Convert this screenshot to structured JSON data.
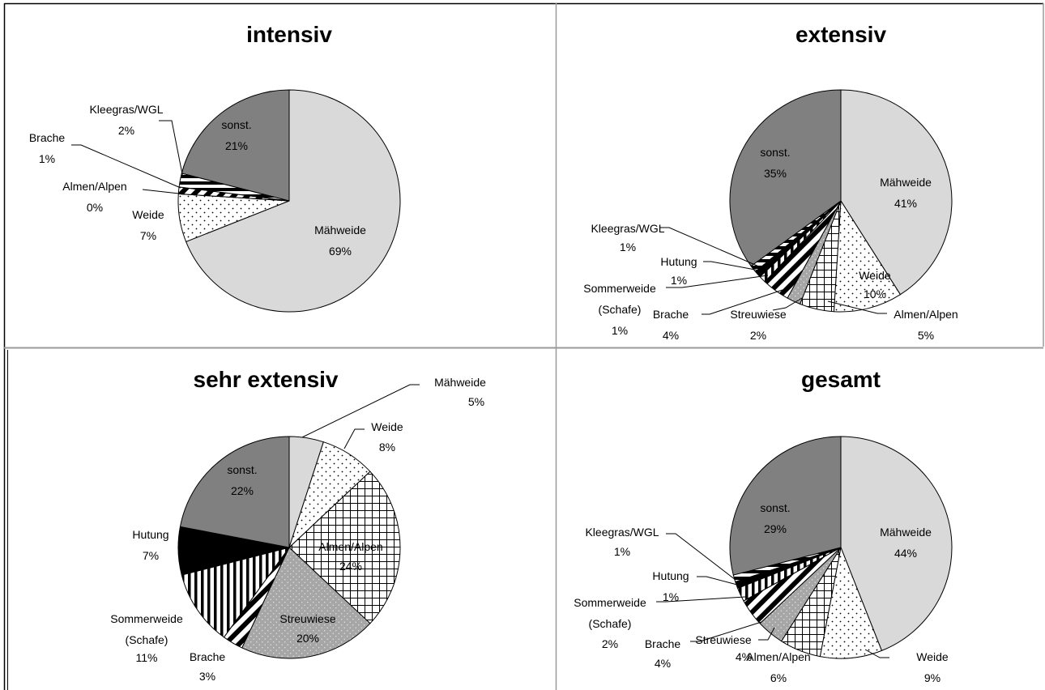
{
  "chart_data": [
    {
      "type": "pie",
      "title": "intensiv",
      "slices": [
        {
          "label": "Mähweide",
          "value_text": "69%",
          "value": 69,
          "pattern": "solid-light",
          "color": "#d9d9d9"
        },
        {
          "label": "Weide",
          "value_text": "7%",
          "value": 7,
          "pattern": "dots",
          "color": "#ffffff"
        },
        {
          "label": "Almen/Alpen",
          "value_text": "0%",
          "value": 0,
          "pattern": "grid",
          "color": "#ffffff"
        },
        {
          "label": "Brache",
          "value_text": "1%",
          "value": 1,
          "pattern": "diagonal",
          "color": "#ffffff"
        },
        {
          "label": "Kleegras/WGL",
          "value_text": "2%",
          "value": 2,
          "pattern": "horizontal",
          "color": "#ffffff"
        },
        {
          "label": "sonst.",
          "value_text": "21%",
          "value": 21,
          "pattern": "solid-dark",
          "color": "#808080"
        }
      ]
    },
    {
      "type": "pie",
      "title": "extensiv",
      "slices": [
        {
          "label": "Mähweide",
          "value_text": "41%",
          "value": 41,
          "pattern": "solid-light",
          "color": "#d9d9d9"
        },
        {
          "label": "Weide",
          "value_text": "10%",
          "value": 10,
          "pattern": "dots",
          "color": "#ffffff"
        },
        {
          "label": "Almen/Alpen",
          "value_text": "5%",
          "value": 5,
          "pattern": "grid",
          "color": "#ffffff"
        },
        {
          "label": "Streuwiese",
          "value_text": "2%",
          "value": 2,
          "pattern": "solid-mid",
          "color": "#a6a6a6"
        },
        {
          "label": "Brache",
          "value_text": "4%",
          "value": 4,
          "pattern": "diagonal",
          "color": "#ffffff"
        },
        {
          "label": "Sommerweide\n(Schafe)",
          "value_text": "1%",
          "value": 1,
          "pattern": "vertical",
          "color": "#ffffff"
        },
        {
          "label": "Hutung",
          "value_text": "1%",
          "value": 1,
          "pattern": "solid-black",
          "color": "#000000"
        },
        {
          "label": "Kleegras/WGL",
          "value_text": "1%",
          "value": 1,
          "pattern": "horizontal",
          "color": "#ffffff"
        },
        {
          "label": "sonst.",
          "value_text": "35%",
          "value": 35,
          "pattern": "solid-dark",
          "color": "#808080"
        }
      ]
    },
    {
      "type": "pie",
      "title": "sehr extensiv",
      "slices": [
        {
          "label": "Mähweide",
          "value_text": "5%",
          "value": 5,
          "pattern": "solid-light",
          "color": "#d9d9d9"
        },
        {
          "label": "Weide",
          "value_text": "8%",
          "value": 8,
          "pattern": "dots",
          "color": "#ffffff"
        },
        {
          "label": "Almen/Alpen",
          "value_text": "24%",
          "value": 24,
          "pattern": "grid",
          "color": "#ffffff"
        },
        {
          "label": "Streuwiese",
          "value_text": "20%",
          "value": 20,
          "pattern": "solid-mid",
          "color": "#a6a6a6"
        },
        {
          "label": "Brache",
          "value_text": "3%",
          "value": 3,
          "pattern": "diagonal",
          "color": "#ffffff"
        },
        {
          "label": "Sommerweide\n(Schafe)",
          "value_text": "11%",
          "value": 11,
          "pattern": "vertical",
          "color": "#ffffff"
        },
        {
          "label": "Hutung",
          "value_text": "7%",
          "value": 7,
          "pattern": "solid-black",
          "color": "#000000"
        },
        {
          "label": "sonst.",
          "value_text": "22%",
          "value": 22,
          "pattern": "solid-dark",
          "color": "#808080"
        }
      ]
    },
    {
      "type": "pie",
      "title": "gesamt",
      "slices": [
        {
          "label": "Mähweide",
          "value_text": "44%",
          "value": 44,
          "pattern": "solid-light",
          "color": "#d9d9d9"
        },
        {
          "label": "Weide",
          "value_text": "9%",
          "value": 9,
          "pattern": "dots",
          "color": "#ffffff"
        },
        {
          "label": "Almen/Alpen",
          "value_text": "6%",
          "value": 6,
          "pattern": "grid",
          "color": "#ffffff"
        },
        {
          "label": "Streuwiese",
          "value_text": "4%",
          "value": 4,
          "pattern": "solid-mid",
          "color": "#a6a6a6"
        },
        {
          "label": "Brache",
          "value_text": "4%",
          "value": 4,
          "pattern": "diagonal",
          "color": "#ffffff"
        },
        {
          "label": "Sommerweide\n(Schafe)",
          "value_text": "2%",
          "value": 2,
          "pattern": "vertical",
          "color": "#ffffff"
        },
        {
          "label": "Hutung",
          "value_text": "1%",
          "value": 1,
          "pattern": "solid-black",
          "color": "#000000"
        },
        {
          "label": "Kleegras/WGL",
          "value_text": "1%",
          "value": 1,
          "pattern": "horizontal",
          "color": "#ffffff"
        },
        {
          "label": "sonst.",
          "value_text": "29%",
          "value": 29,
          "pattern": "solid-dark",
          "color": "#808080"
        }
      ]
    }
  ]
}
